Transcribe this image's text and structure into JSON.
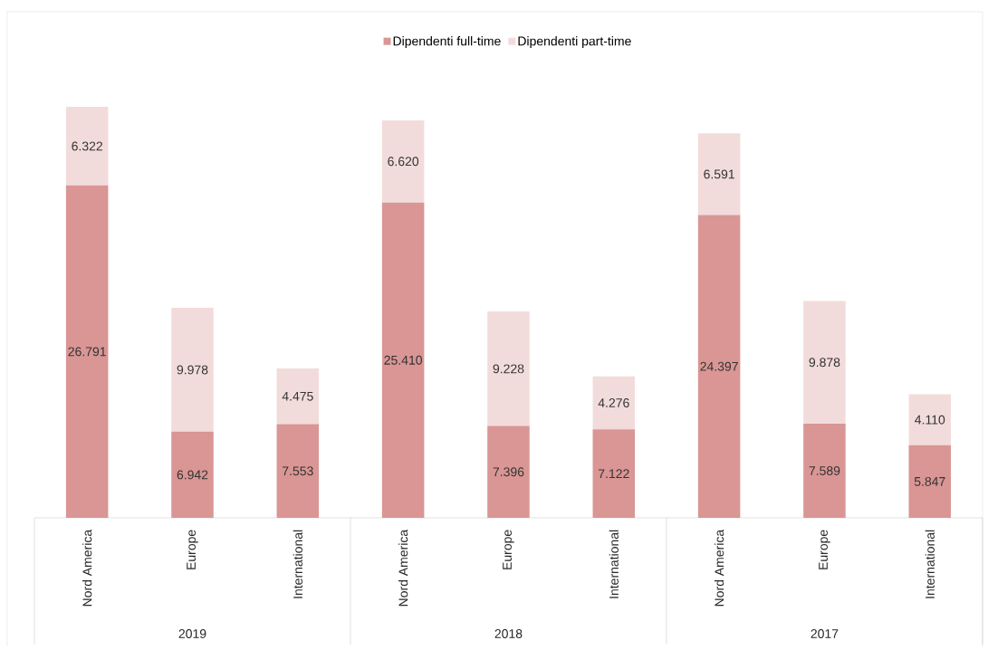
{
  "chart_data": {
    "type": "bar",
    "stacked": true,
    "legend": "top",
    "categories": [
      "Nord America",
      "Europe",
      "International",
      "Nord America",
      "Europe",
      "International",
      "Nord America",
      "Europe",
      "International"
    ],
    "series": [
      {
        "name": "Dipendenti full-time",
        "color": "#d99694",
        "values": [
          26791,
          6942,
          7553,
          25410,
          7396,
          7122,
          24397,
          7589,
          5847
        ],
        "value_labels": [
          "26.791",
          "6.942",
          "7.553",
          "25.410",
          "7.396",
          "7.122",
          "24.397",
          "7.589",
          "5.847"
        ]
      },
      {
        "name": "Dipendenti part-time",
        "color": "#f2dcdb",
        "values": [
          6322,
          9978,
          4475,
          6620,
          9228,
          4276,
          6591,
          9878,
          4110
        ],
        "value_labels": [
          "6.322",
          "9.978",
          "4.475",
          "6.620",
          "9.228",
          "4.276",
          "6.591",
          "9.878",
          "4.110"
        ]
      }
    ],
    "annotations": [
      "2019",
      "2018",
      "2017"
    ]
  }
}
